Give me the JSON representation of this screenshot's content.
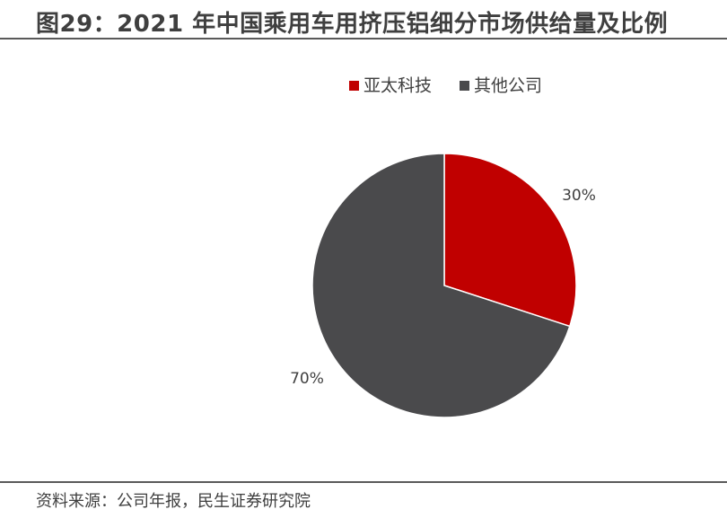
{
  "header": {
    "title": "图29：2021 年中国乘用车用挤压铝细分市场供给量及比例"
  },
  "footer": {
    "source": "资料来源：公司年报，民生证券研究院"
  },
  "chart_data": {
    "type": "pie",
    "title": "",
    "legend_placement": "top",
    "slices": [
      {
        "name": "亚太科技",
        "value": 30,
        "label": "30%",
        "color": "#c00000"
      },
      {
        "name": "其他公司",
        "value": 70,
        "label": "70%",
        "color": "#4a4a4c"
      }
    ]
  }
}
